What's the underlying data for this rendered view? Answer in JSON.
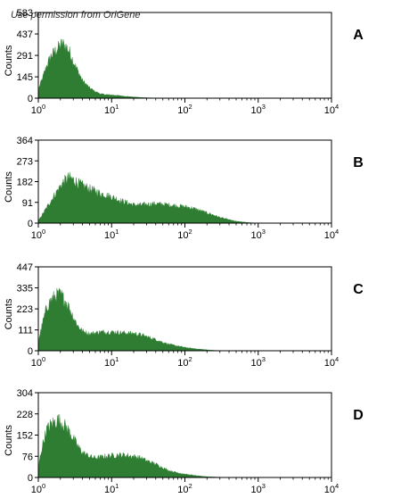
{
  "watermark": "Use permission from OriGene",
  "chart_data": [
    {
      "type": "area",
      "panel_label": "A",
      "xscale": "log",
      "xlim": [
        1,
        10000
      ],
      "xticks": [
        "10^0",
        "10^1",
        "10^2",
        "10^3",
        "10^4"
      ],
      "ylabel": "Counts",
      "ylim": [
        0,
        583
      ],
      "yticks": [
        "0",
        "145",
        "291",
        "437",
        "583"
      ],
      "color": "#2e7d32",
      "x": [
        1,
        1.15,
        1.3,
        1.5,
        1.7,
        1.9,
        2.1,
        2.4,
        2.7,
        3,
        3.5,
        4,
        5,
        6,
        7,
        8,
        10,
        13,
        16,
        20,
        25,
        30,
        40,
        60
      ],
      "y": [
        60,
        140,
        220,
        290,
        320,
        345,
        370,
        350,
        310,
        250,
        180,
        120,
        70,
        45,
        30,
        25,
        22,
        17,
        12,
        8,
        5,
        3,
        1,
        0
      ],
      "grid": false,
      "legend": "none"
    },
    {
      "type": "area",
      "panel_label": "B",
      "xscale": "log",
      "xlim": [
        1,
        10000
      ],
      "xticks": [
        "10^0",
        "10^1",
        "10^2",
        "10^3",
        "10^4"
      ],
      "ylabel": "Counts",
      "ylim": [
        0,
        364
      ],
      "yticks": [
        "0",
        "91",
        "182",
        "273",
        "364"
      ],
      "color": "#2e7d32",
      "x": [
        1,
        1.2,
        1.5,
        1.8,
        2.2,
        2.6,
        3,
        3.5,
        4,
        5,
        6,
        7,
        8,
        10,
        13,
        16,
        20,
        25,
        30,
        40,
        50,
        60,
        70,
        80,
        100,
        130,
        160,
        200,
        250,
        300,
        400,
        500,
        700,
        1000
      ],
      "y": [
        10,
        50,
        100,
        140,
        180,
        200,
        190,
        175,
        165,
        150,
        140,
        130,
        125,
        115,
        100,
        90,
        80,
        80,
        82,
        85,
        82,
        80,
        78,
        75,
        72,
        65,
        55,
        45,
        35,
        25,
        15,
        8,
        3,
        0
      ],
      "grid": false,
      "legend": "none"
    },
    {
      "type": "area",
      "panel_label": "C",
      "xscale": "log",
      "xlim": [
        1,
        10000
      ],
      "xticks": [
        "10^0",
        "10^1",
        "10^2",
        "10^3",
        "10^4"
      ],
      "ylabel": "Counts",
      "ylim": [
        0,
        447
      ],
      "yticks": [
        "0",
        "111",
        "223",
        "335",
        "447"
      ],
      "color": "#2e7d32",
      "x": [
        1,
        1.15,
        1.3,
        1.5,
        1.7,
        1.9,
        2.1,
        2.4,
        2.7,
        3,
        3.5,
        4,
        5,
        6,
        7,
        8,
        10,
        12,
        15,
        20,
        25,
        30,
        40,
        50,
        60,
        80,
        100,
        130,
        160,
        200,
        250,
        300,
        400
      ],
      "y": [
        50,
        150,
        230,
        270,
        290,
        300,
        290,
        260,
        220,
        180,
        130,
        105,
        90,
        95,
        100,
        100,
        100,
        98,
        95,
        92,
        85,
        75,
        60,
        45,
        35,
        25,
        18,
        12,
        8,
        5,
        2,
        1,
        0
      ],
      "grid": false,
      "legend": "none"
    },
    {
      "type": "area",
      "panel_label": "D",
      "xscale": "log",
      "xlim": [
        1,
        10000
      ],
      "xticks": [
        "10^0",
        "10^1",
        "10^2",
        "10^3",
        "10^4"
      ],
      "ylabel": "Counts",
      "ylim": [
        0,
        304
      ],
      "yticks": [
        "0",
        "76",
        "152",
        "228",
        "304"
      ],
      "color": "#2e7d32",
      "x": [
        1,
        1.15,
        1.3,
        1.5,
        1.7,
        1.9,
        2.1,
        2.4,
        2.7,
        3,
        3.5,
        4,
        5,
        6,
        7,
        8,
        10,
        12,
        15,
        20,
        25,
        30,
        40,
        50,
        60,
        80,
        100,
        130,
        160,
        200,
        250,
        300,
        400
      ],
      "y": [
        40,
        120,
        170,
        190,
        200,
        205,
        195,
        180,
        160,
        140,
        110,
        90,
        75,
        70,
        72,
        75,
        78,
        80,
        80,
        75,
        70,
        60,
        48,
        35,
        25,
        17,
        12,
        8,
        5,
        3,
        2,
        1,
        0
      ],
      "grid": false,
      "legend": "none"
    }
  ]
}
